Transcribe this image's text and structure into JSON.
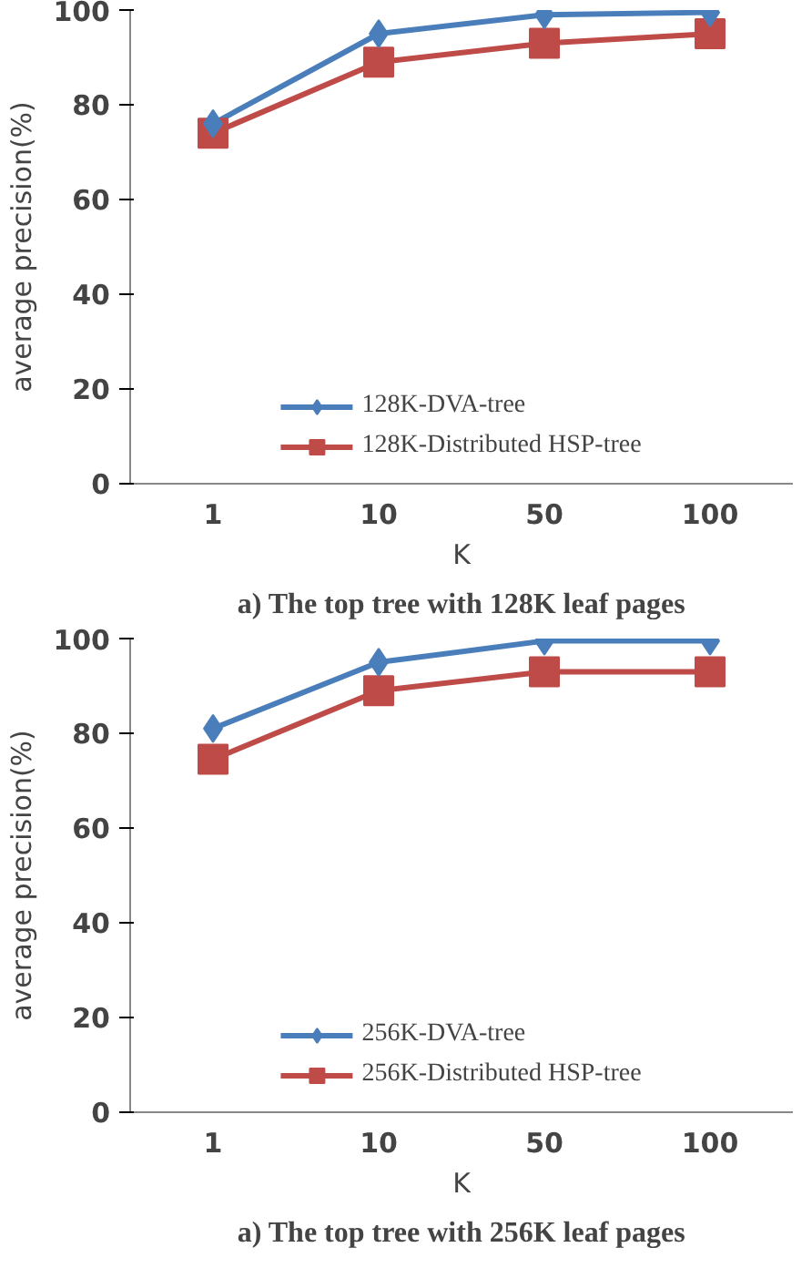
{
  "chart_data": [
    {
      "type": "line",
      "categories": [
        "1",
        "10",
        "50",
        "100"
      ],
      "xlabel": "K",
      "ylabel": "average precision(%)",
      "ylim": [
        0,
        100
      ],
      "yticks": [
        0,
        20,
        40,
        60,
        80,
        100
      ],
      "grid": false,
      "legend": "bottom",
      "line_style": "solid",
      "annotations": [
        "a) The top tree with 128K leaf pages"
      ],
      "series": [
        {
          "name": "128K-DVA-tree",
          "color": "#4a7ebb",
          "marker": "diamond",
          "values": [
            76,
            95,
            99,
            99.5
          ]
        },
        {
          "name": "128K-Distributed HSP-tree",
          "color": "#be4b48",
          "marker": "square",
          "values": [
            74,
            89,
            93,
            95
          ]
        }
      ]
    },
    {
      "type": "line",
      "categories": [
        "1",
        "10",
        "50",
        "100"
      ],
      "xlabel": "K",
      "ylabel": "average precision(%)",
      "ylim": [
        0,
        100
      ],
      "yticks": [
        0,
        20,
        40,
        60,
        80,
        100
      ],
      "grid": false,
      "legend": "bottom",
      "line_style": "solid",
      "annotations": [
        "a) The top tree with 256K leaf pages"
      ],
      "series": [
        {
          "name": "256K-DVA-tree",
          "color": "#4a7ebb",
          "marker": "diamond",
          "values": [
            81,
            95,
            99.5,
            99.5
          ]
        },
        {
          "name": "256K-Distributed HSP-tree",
          "color": "#be4b48",
          "marker": "square",
          "values": [
            74.5,
            89,
            93,
            93
          ]
        }
      ]
    }
  ]
}
